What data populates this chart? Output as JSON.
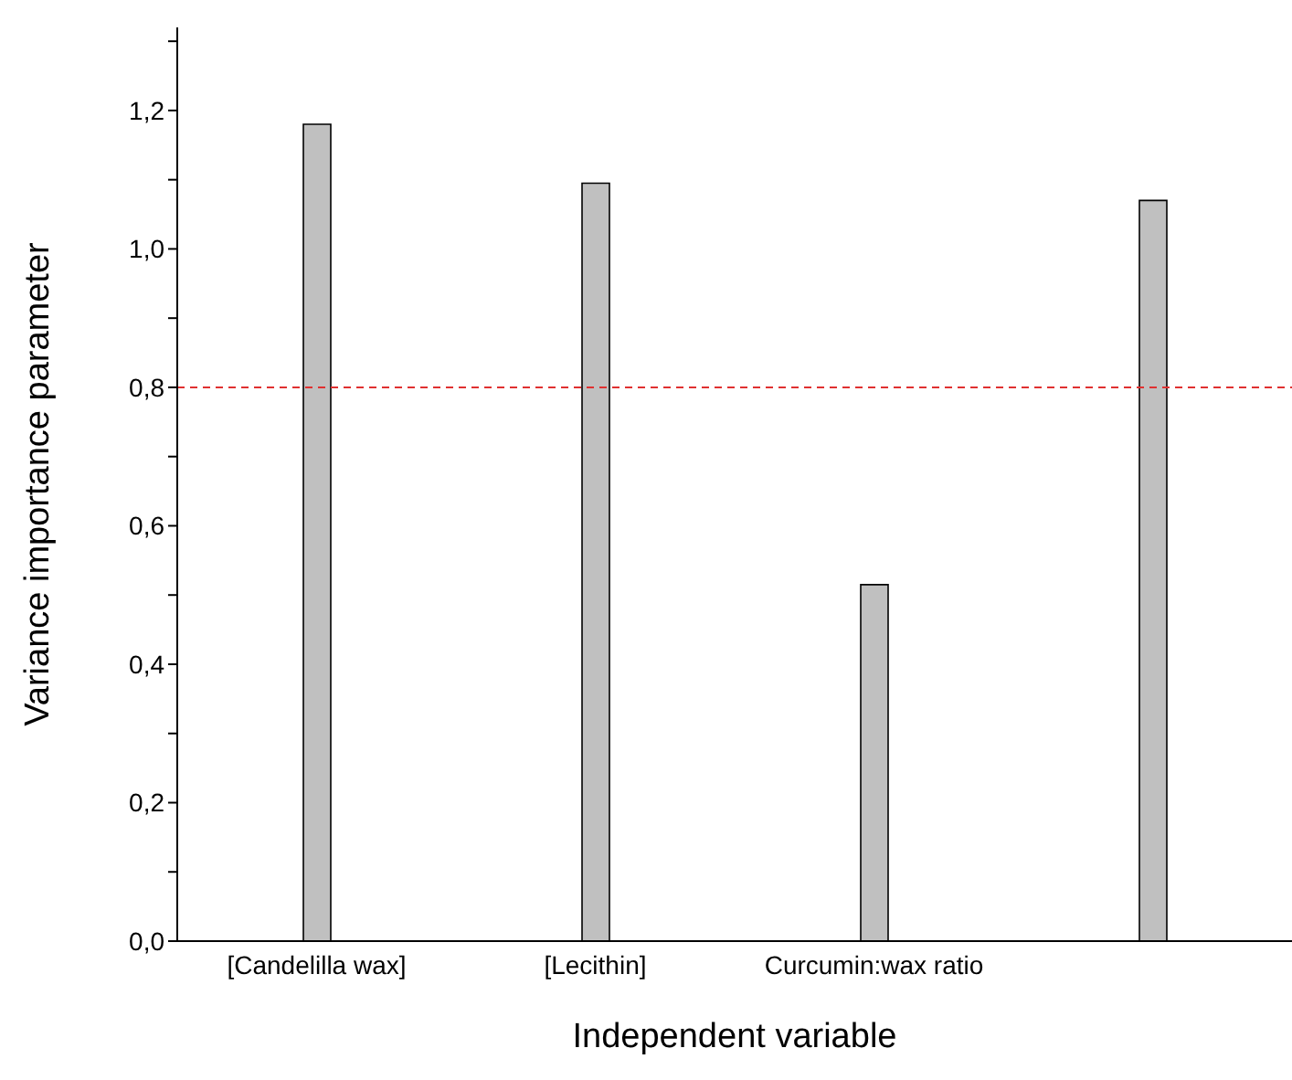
{
  "chart_data": {
    "type": "bar",
    "xlabel": "Independent variable",
    "ylabel": "Variance importance parameter",
    "categories": [
      "[Candelilla wax]",
      "[Lecithin]",
      "Curcumin:wax ratio",
      null
    ],
    "values": [
      1.18,
      1.095,
      0.515,
      1.07
    ],
    "color": "#c0c0c0",
    "ylim": [
      0,
      1.32
    ],
    "yticks": [
      {
        "value": 0,
        "label": "0,0"
      },
      {
        "value": 0.1,
        "label": null
      },
      {
        "value": 0.2,
        "label": "0,2"
      },
      {
        "value": 0.3,
        "label": null
      },
      {
        "value": 0.4,
        "label": "0,4"
      },
      {
        "value": 0.5,
        "label": null
      },
      {
        "value": 0.6,
        "label": "0,6"
      },
      {
        "value": 0.7,
        "label": null
      },
      {
        "value": 0.8,
        "label": "0,8"
      },
      {
        "value": 0.9,
        "label": null
      },
      {
        "value": 1.0,
        "label": "1,0"
      },
      {
        "value": 1.1,
        "label": null
      },
      {
        "value": 1.2,
        "label": "1,2"
      },
      {
        "value": 1.3,
        "label": null
      }
    ],
    "ref_lines": [
      {
        "axis": "y",
        "value": 0.8,
        "label": null,
        "color": "#e03030",
        "line_style": "dashed"
      }
    ],
    "grid": false,
    "legend": false
  }
}
